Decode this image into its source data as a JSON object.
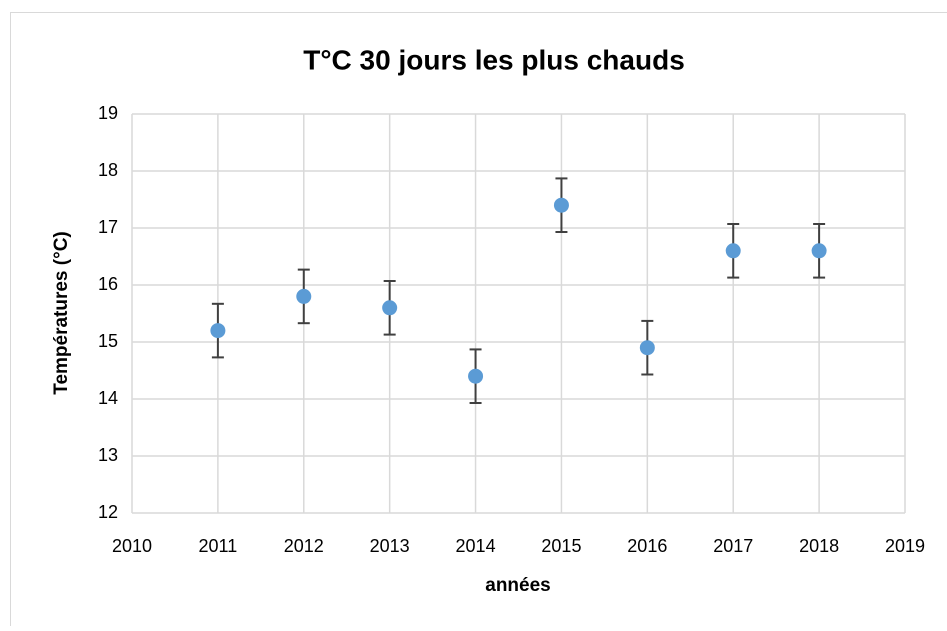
{
  "chart_data": {
    "type": "scatter",
    "title": "T°C 30 jours les plus chauds",
    "xlabel": "années",
    "ylabel": "Températures (°C)",
    "x": [
      2011,
      2012,
      2013,
      2014,
      2015,
      2016,
      2017,
      2018
    ],
    "series": [
      {
        "name": "T°C",
        "color": "#5b9bd5",
        "values": [
          15.2,
          15.8,
          15.6,
          14.4,
          17.4,
          14.9,
          16.6,
          16.6
        ],
        "errors": [
          0.47,
          0.47,
          0.47,
          0.47,
          0.47,
          0.47,
          0.47,
          0.47
        ]
      }
    ],
    "error_color": "#404040",
    "xlim": [
      2010,
      2019
    ],
    "xticks": [
      2010,
      2011,
      2012,
      2013,
      2014,
      2015,
      2016,
      2017,
      2018,
      2019
    ],
    "ylim": [
      12,
      19
    ],
    "yticks": [
      12,
      13,
      14,
      15,
      16,
      17,
      18,
      19
    ],
    "grid": true
  }
}
